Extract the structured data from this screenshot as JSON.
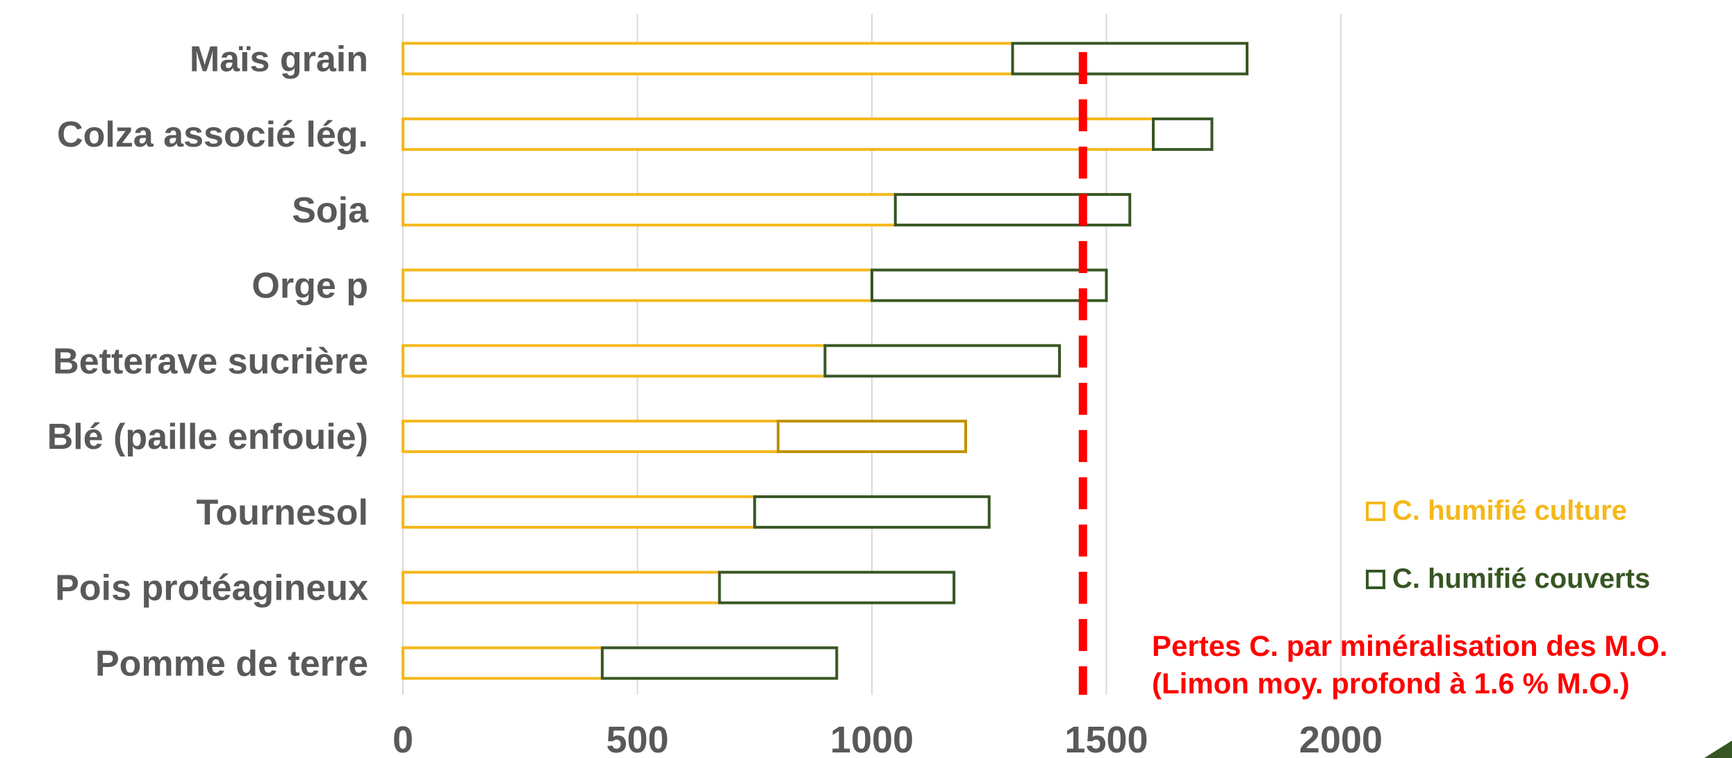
{
  "chart_data": {
    "type": "bar",
    "orientation": "horizontal",
    "stacked": true,
    "categories": [
      "Maïs grain",
      "Colza associé lég.",
      "Soja ",
      "Orge p",
      "Betterave sucrière",
      "Blé (paille enfouie)",
      "Tournesol",
      "Pois protéagineux",
      "Pomme de terre"
    ],
    "series": [
      {
        "name": "C. humifié culture",
        "color": "#F5B81B",
        "values": [
          1300,
          1600,
          1050,
          1000,
          900,
          800,
          750,
          675,
          425
        ]
      },
      {
        "name": "C. humifié couverts",
        "color": "#375623",
        "values": [
          500,
          125,
          500,
          500,
          500,
          400,
          500,
          500,
          500
        ]
      }
    ],
    "segment_colors": [
      [
        "#F5B81B",
        "#375623"
      ],
      [
        "#F5B81B",
        "#375623"
      ],
      [
        "#F5B81B",
        "#375623"
      ],
      [
        "#F5B81B",
        "#375623"
      ],
      [
        "#F5B81B",
        "#375623"
      ],
      [
        "#F5B81B",
        "#BF9000"
      ],
      [
        "#F5B81B",
        "#375623"
      ],
      [
        "#F5B81B",
        "#375623"
      ],
      [
        "#F5B81B",
        "#375623"
      ]
    ],
    "xlim": [
      0,
      2000
    ],
    "xticks": [
      "0",
      "500",
      "1000",
      "1500",
      "2000"
    ],
    "grid": true,
    "legend_position": "right",
    "reference_line": {
      "value": 1450,
      "color": "#FF0000",
      "label_line1": "Pertes C. par minéralisation des M.O.",
      "label_line2": "(Limon moy. profond à 1.6 % M.O.)"
    },
    "label_color": "#595959",
    "grid_color": "#D9D9D9"
  }
}
